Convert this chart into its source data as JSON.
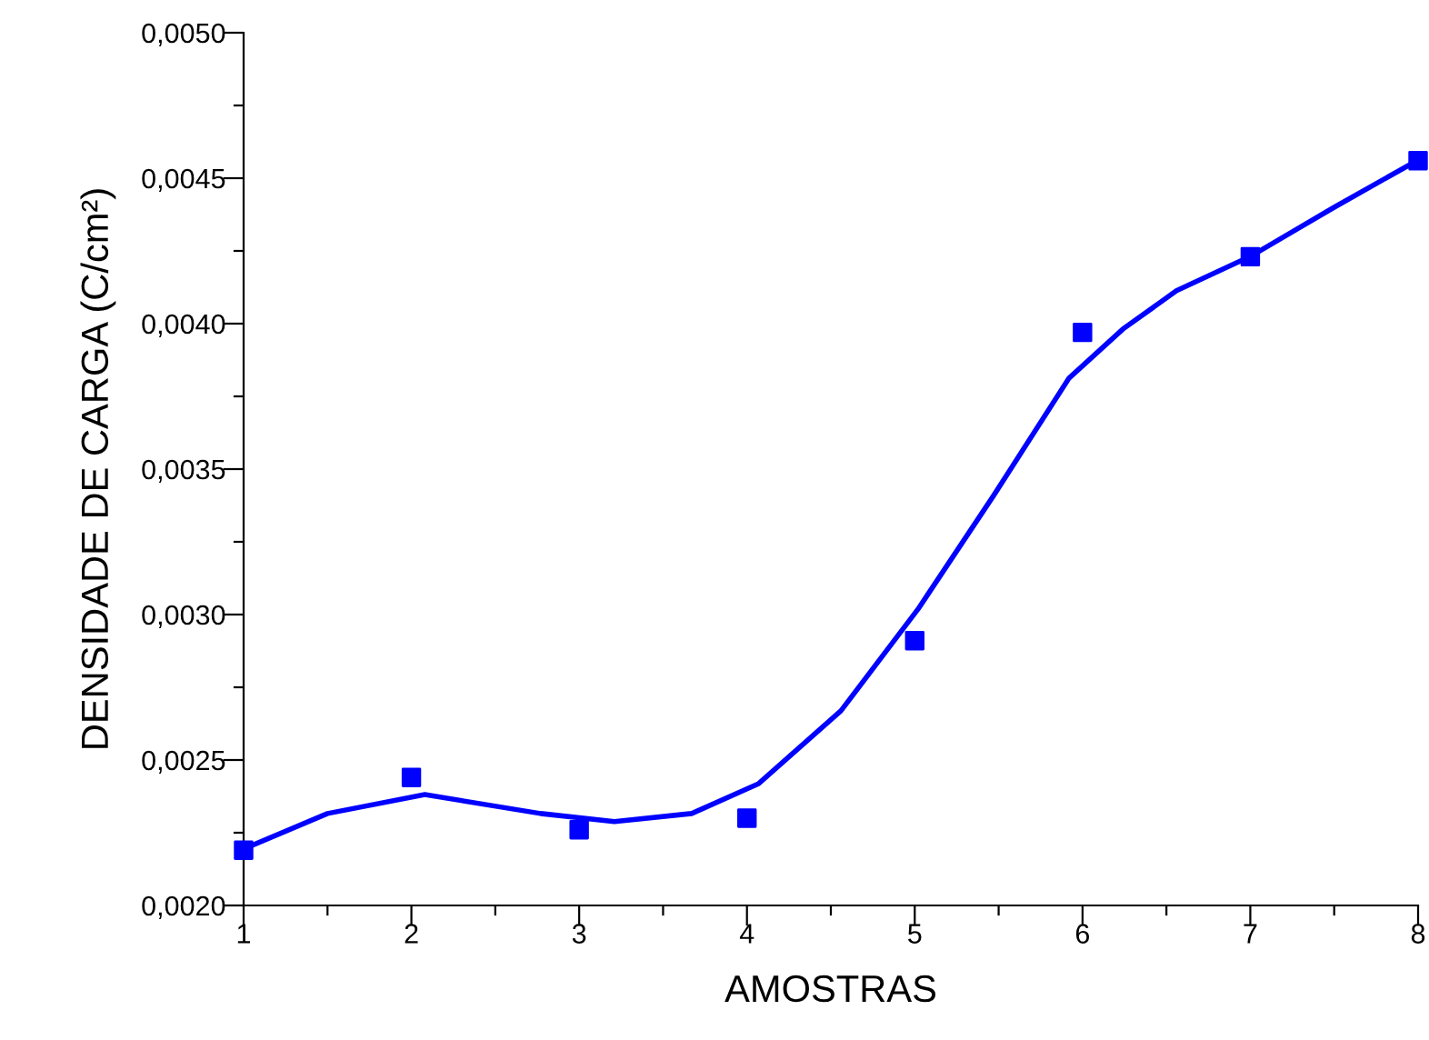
{
  "chart_data": {
    "type": "scatter",
    "xlabel": "AMOSTRAS",
    "ylabel": "DENSIDADE DE CARGA (C/cm²)",
    "xlim": [
      1,
      8
    ],
    "ylim": [
      0.002,
      0.005
    ],
    "xticks": [
      1,
      {
        "value": 1.5,
        "label": null
      },
      2,
      {
        "value": 2.5,
        "label": null
      },
      3,
      {
        "value": 3.5,
        "label": null
      },
      4,
      {
        "value": 4.5,
        "label": null
      },
      5,
      {
        "value": 5.5,
        "label": null
      },
      6,
      {
        "value": 6.5,
        "label": null
      },
      7,
      {
        "value": 7.5,
        "label": null
      },
      8
    ],
    "yticks": [
      {
        "value": 0.002,
        "label": "0,0020"
      },
      {
        "value": 0.00225,
        "label": null
      },
      {
        "value": 0.0025,
        "label": "0,0025"
      },
      {
        "value": 0.00275,
        "label": null
      },
      {
        "value": 0.003,
        "label": "0,0030"
      },
      {
        "value": 0.00325,
        "label": null
      },
      {
        "value": 0.0035,
        "label": "0,0035"
      },
      {
        "value": 0.00375,
        "label": null
      },
      {
        "value": 0.004,
        "label": "0,0040"
      },
      {
        "value": 0.00425,
        "label": null
      },
      {
        "value": 0.0045,
        "label": "0,0045"
      },
      {
        "value": 0.00475,
        "label": null
      },
      {
        "value": 0.005,
        "label": "0,0050"
      }
    ],
    "grid": false,
    "legend": false,
    "series": [
      {
        "marker": "square",
        "color": "#0000ff",
        "x": [
          1,
          2,
          3,
          4,
          5,
          6,
          7,
          8
        ],
        "values": [
          0.00219,
          0.00244,
          0.00226,
          0.0023,
          0.00291,
          0.00397,
          0.00423,
          0.00456
        ]
      },
      {
        "type": "line",
        "marker": "none",
        "line_style": "solid",
        "color": "#0000ff",
        "x": [
          1.0,
          1.5,
          2.08,
          2.77,
          3.21,
          3.67,
          4.07,
          4.56,
          5.02,
          5.47,
          5.92,
          6.24,
          6.56,
          7.0,
          7.5,
          7.98
        ],
        "values": [
          0.002194,
          0.002316,
          0.002381,
          0.002316,
          0.002288,
          0.002316,
          0.002419,
          0.002669,
          0.003019,
          0.003409,
          0.003813,
          0.003981,
          0.004113,
          0.004231,
          0.0044,
          0.004556
        ]
      }
    ]
  }
}
